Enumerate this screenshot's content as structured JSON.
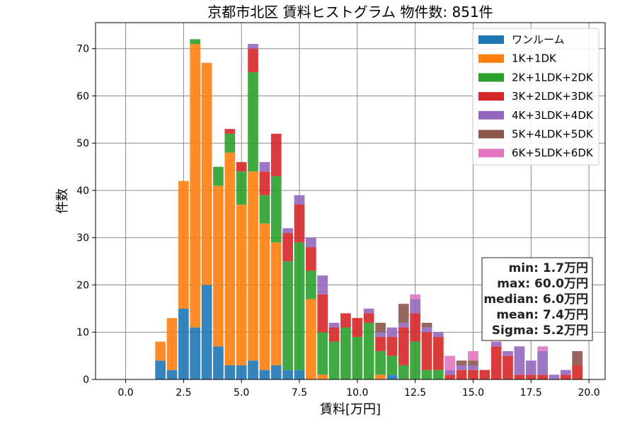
{
  "chart_data": {
    "type": "bar",
    "stacked": true,
    "title": "京都市北区 賃料ヒストグラム 物件数: 851件",
    "xlabel": "賃料[万円]",
    "ylabel": "件数",
    "xlim": [
      -1.3,
      20.7
    ],
    "ylim": [
      0,
      75.5
    ],
    "xticks": [
      0.0,
      2.5,
      5.0,
      7.5,
      10.0,
      12.5,
      15.0,
      17.5,
      20.0
    ],
    "xtick_labels": [
      "0.0",
      "2.5",
      "5.0",
      "7.5",
      "10.0",
      "12.5",
      "15.0",
      "17.5",
      "20.0"
    ],
    "yticks": [
      0,
      10,
      20,
      30,
      40,
      50,
      60,
      70
    ],
    "ytick_labels": [
      "0",
      "10",
      "20",
      "30",
      "40",
      "50",
      "60",
      "70"
    ],
    "grid": true,
    "legend_position": "top-right",
    "bin_width": 0.5,
    "x": [
      1.5,
      2.0,
      2.5,
      3.0,
      3.5,
      4.0,
      4.5,
      5.0,
      5.5,
      6.0,
      6.5,
      7.0,
      7.5,
      8.0,
      8.5,
      9.0,
      9.5,
      10.0,
      10.5,
      11.0,
      11.5,
      12.0,
      12.5,
      13.0,
      13.5,
      14.0,
      14.5,
      15.0,
      15.5,
      16.0,
      16.5,
      17.0,
      17.5,
      18.0,
      18.5,
      19.0,
      19.5
    ],
    "series": [
      {
        "name": "ワンルーム",
        "color": "#1f77b4",
        "values": [
          4,
          2,
          15,
          11,
          20,
          7,
          3,
          3,
          4,
          2,
          3,
          2,
          2,
          0,
          0,
          0,
          0,
          0,
          0,
          0,
          1,
          0,
          0,
          0,
          0,
          0,
          0,
          0,
          0,
          0,
          0,
          0,
          0,
          0,
          0,
          0,
          0
        ]
      },
      {
        "name": "1K+1DK",
        "color": "#ff7f0e",
        "values": [
          4,
          11,
          27,
          60,
          47,
          34,
          45,
          34,
          40,
          31,
          26,
          0,
          0,
          17,
          1,
          0,
          0,
          0,
          0,
          1,
          0,
          0,
          0,
          0,
          0,
          0,
          0,
          0,
          0,
          0,
          0,
          0,
          0,
          0,
          0,
          0,
          0
        ]
      },
      {
        "name": "2K+1LDK+2DK",
        "color": "#2ca02c",
        "values": [
          0,
          0,
          0,
          1,
          0,
          4,
          4,
          7,
          21,
          6,
          14,
          23,
          27,
          6,
          9,
          8,
          11,
          9,
          12,
          5,
          4,
          3,
          8,
          2,
          2,
          0,
          0,
          0,
          0,
          0,
          0,
          0,
          0,
          0,
          0,
          0,
          0
        ]
      },
      {
        "name": "3K+2LDK+3DK",
        "color": "#d62728",
        "values": [
          0,
          0,
          0,
          0,
          0,
          0,
          1,
          2,
          5,
          5,
          9,
          6,
          8,
          5,
          8,
          3,
          3,
          4,
          2,
          3,
          4,
          8,
          6,
          8,
          7,
          1,
          2,
          2,
          2,
          7,
          5,
          1,
          1,
          1,
          0,
          1,
          3
        ]
      },
      {
        "name": "4K+3LDK+4DK",
        "color": "#9467bd",
        "values": [
          0,
          0,
          0,
          0,
          0,
          0,
          0,
          0,
          1,
          2,
          0,
          1,
          2,
          2,
          4,
          1,
          0,
          0,
          1,
          1,
          2,
          1,
          3,
          1,
          1,
          1,
          1,
          1,
          0,
          1,
          1,
          6,
          3,
          5,
          1,
          1,
          0
        ]
      },
      {
        "name": "5K+4LDK+5DK",
        "color": "#8c564b",
        "values": [
          0,
          0,
          0,
          0,
          0,
          0,
          0,
          0,
          0,
          0,
          0,
          0,
          0,
          0,
          0,
          0,
          0,
          0,
          0,
          2,
          0,
          4,
          0,
          1,
          0,
          0,
          1,
          1,
          0,
          0,
          0,
          0,
          0,
          0,
          0,
          0,
          3
        ]
      },
      {
        "name": "6K+5LDK+6DK",
        "color": "#e377c2",
        "values": [
          0,
          0,
          0,
          0,
          0,
          0,
          0,
          0,
          0,
          0,
          0,
          0,
          0,
          0,
          0,
          0,
          0,
          0,
          0,
          0,
          0,
          0,
          1,
          0,
          0,
          3,
          0,
          2,
          0,
          0,
          0,
          0,
          0,
          1,
          0,
          0,
          0
        ]
      }
    ],
    "stats": {
      "min": "min: 1.7万円",
      "max": "max: 60.0万円",
      "median": "median: 6.0万円",
      "mean": "mean: 7.4万円",
      "sigma": "Sigma: 5.2万円"
    }
  }
}
